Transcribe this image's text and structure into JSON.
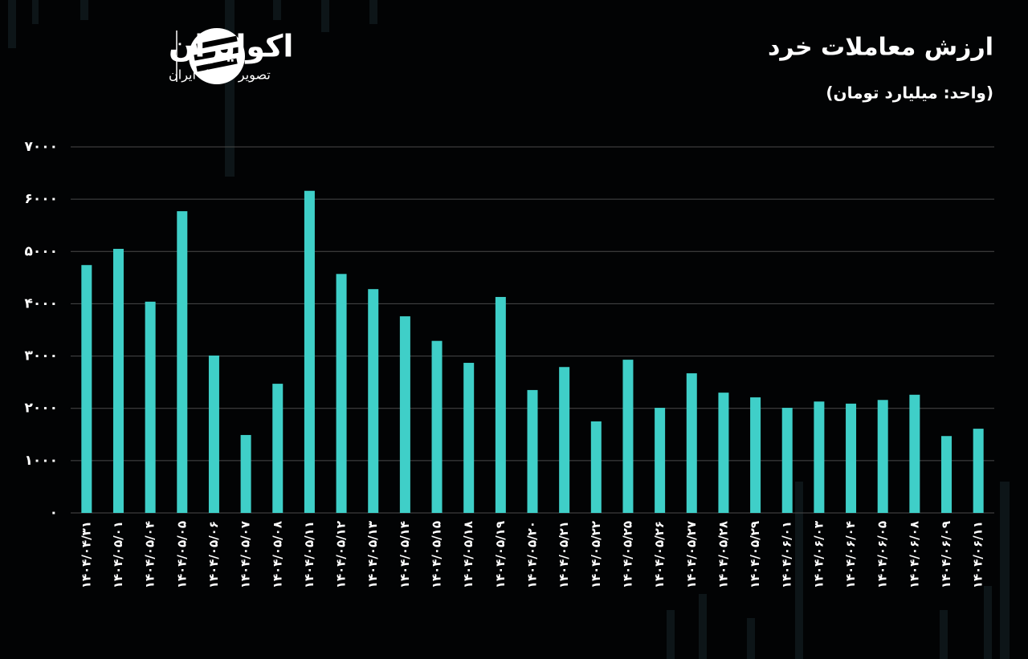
{
  "brand": {
    "name": "اکوایران",
    "tagline": "تصویر اقتصاد ایران"
  },
  "chart_data": {
    "type": "bar",
    "title": "ارزش معاملات خرد",
    "subtitle": "(واحد: میلیارد تومان)",
    "categories": [
      "۱۴۰۴/۰۴/۳۱",
      "۱۴۰۴/۰۵/۰۱",
      "۱۴۰۴/۰۵/۰۴",
      "۱۴۰۴/۰۵/۰۵",
      "۱۴۰۴/۰۵/۰۶",
      "۱۴۰۴/۰۵/۰۷",
      "۱۴۰۴/۰۵/۰۸",
      "۱۴۰۴/۰۵/۱۱",
      "۱۴۰۴/۰۵/۱۲",
      "۱۴۰۴/۰۵/۱۳",
      "۱۴۰۴/۰۵/۱۴",
      "۱۴۰۴/۰۵/۱۵",
      "۱۴۰۴/۰۵/۱۸",
      "۱۴۰۴/۰۵/۱۹",
      "۱۴۰۴/۰۵/۲۰",
      "۱۴۰۴/۰۵/۲۱",
      "۱۴۰۴/۰۵/۲۲",
      "۱۴۰۴/۰۵/۲۵",
      "۱۴۰۴/۰۵/۲۶",
      "۱۴۰۴/۰۵/۲۷",
      "۱۴۰۴/۰۵/۲۸",
      "۱۴۰۴/۰۵/۲۹",
      "۱۴۰۴/۰۶/۰۱",
      "۱۴۰۴/۰۶/۰۳",
      "۱۴۰۴/۰۶/۰۴",
      "۱۴۰۴/۰۶/۰۵",
      "۱۴۰۴/۰۶/۰۸",
      "۱۴۰۴/۰۶/۰۹",
      "۱۴۰۴/۰۶/۱۱"
    ],
    "values": [
      4740,
      5050,
      4040,
      5770,
      3010,
      1490,
      2470,
      6160,
      4570,
      4280,
      3760,
      3290,
      2870,
      4130,
      2350,
      2790,
      1750,
      2930,
      2010,
      2670,
      2300,
      2210,
      2010,
      2130,
      2090,
      2160,
      2260,
      1470,
      1610
    ],
    "color": "#3fcfc8",
    "ylim": [
      0,
      7000
    ],
    "yticks": [
      {
        "value": 0,
        "label": "۰"
      },
      {
        "value": 1000,
        "label": "۱۰۰۰"
      },
      {
        "value": 2000,
        "label": "۲۰۰۰"
      },
      {
        "value": 3000,
        "label": "۳۰۰۰"
      },
      {
        "value": 4000,
        "label": "۴۰۰۰"
      },
      {
        "value": 5000,
        "label": "۵۰۰۰"
      },
      {
        "value": 6000,
        "label": "۶۰۰۰"
      },
      {
        "value": 7000,
        "label": "۷۰۰۰"
      }
    ],
    "grid": true
  }
}
